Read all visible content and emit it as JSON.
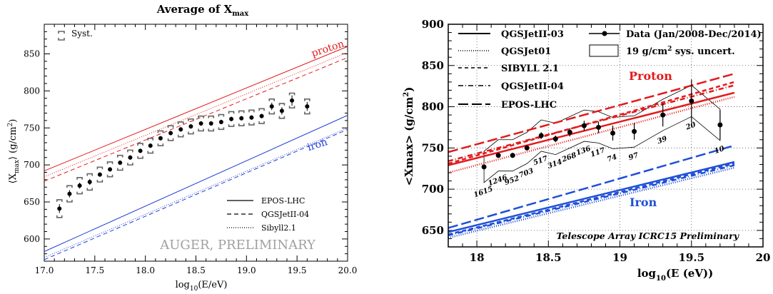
{
  "chart_data": [
    {
      "type": "scatter",
      "title_main": "Average of X",
      "title_sub": "max",
      "xlabel_main": "log",
      "xlabel_sub": "10",
      "xlabel_rest": "(E/eV)",
      "ylabel_a": "⟨X",
      "ylabel_sub": "max",
      "ylabel_b": "⟩  (g/cm",
      "ylabel_sup": "2",
      "ylabel_c": ")",
      "xlim": [
        17.0,
        20.0
      ],
      "ylim": [
        570,
        890
      ],
      "xticks": [
        17.0,
        17.5,
        18.0,
        18.5,
        19.0,
        19.5,
        20.0
      ],
      "xtick_labels": [
        "17.0",
        "17.5",
        "18.0",
        "18.5",
        "19.0",
        "19.5",
        "20.0"
      ],
      "yticks": [
        600,
        650,
        700,
        750,
        800,
        850
      ],
      "ytick_labels": [
        "600",
        "650",
        "700",
        "750",
        "800",
        "850"
      ],
      "syst_label": "Syst.",
      "watermark": "AUGER, PRELIMINARY",
      "annotations": [
        {
          "text": "proton",
          "color": "#e41a1c"
        },
        {
          "text": "iron",
          "color": "#1f3fd6"
        }
      ],
      "legend": [
        {
          "label": "EPOS-LHC",
          "dash": "solid"
        },
        {
          "label": "QGSJetII-04",
          "dash": "dashed"
        },
        {
          "label": "Sibyll2.1",
          "dash": "dotted"
        }
      ],
      "series": [
        {
          "name": "EPOS-LHC",
          "group": "proton",
          "color": "#e41a1c",
          "dash": "solid",
          "x": [
            17.0,
            20.0
          ],
          "y": [
            692,
            860
          ]
        },
        {
          "name": "QGSJetII-04",
          "group": "proton",
          "color": "#e41a1c",
          "dash": "dashed",
          "x": [
            17.0,
            20.0
          ],
          "y": [
            678,
            845
          ]
        },
        {
          "name": "Sibyll2.1",
          "group": "proton",
          "color": "#e41a1c",
          "dash": "dotted",
          "x": [
            17.0,
            20.0
          ],
          "y": [
            684,
            852
          ]
        },
        {
          "name": "EPOS-LHC",
          "group": "iron",
          "color": "#1f3fd6",
          "dash": "solid",
          "x": [
            17.0,
            20.0
          ],
          "y": [
            583,
            767
          ]
        },
        {
          "name": "QGSJetII-04",
          "group": "iron",
          "color": "#1f3fd6",
          "dash": "dashed",
          "x": [
            17.0,
            20.0
          ],
          "y": [
            572,
            748
          ]
        },
        {
          "name": "Sibyll2.1",
          "group": "iron",
          "color": "#1f3fd6",
          "dash": "dotted",
          "x": [
            17.0,
            20.0
          ],
          "y": [
            575,
            750
          ]
        }
      ],
      "points": {
        "x": [
          17.15,
          17.25,
          17.35,
          17.45,
          17.55,
          17.65,
          17.75,
          17.85,
          17.95,
          18.05,
          18.15,
          18.25,
          18.35,
          18.45,
          18.55,
          18.65,
          18.75,
          18.85,
          18.95,
          19.05,
          19.15,
          19.25,
          19.35,
          19.45,
          19.6
        ],
        "y": [
          641,
          661,
          672,
          677,
          687,
          694,
          703,
          710,
          719,
          726,
          736,
          743,
          748,
          752,
          756,
          756,
          758,
          762,
          763,
          764,
          766,
          779,
          773,
          787,
          779
        ],
        "err": [
          6,
          5,
          4,
          4,
          3,
          3,
          3,
          3,
          3,
          3,
          3,
          3,
          3,
          3,
          3,
          3,
          3,
          3,
          3,
          3,
          3,
          5,
          5,
          7,
          6
        ],
        "syst": [
          12,
          11,
          11,
          11,
          10,
          10,
          10,
          10,
          10,
          10,
          10,
          10,
          10,
          10,
          10,
          10,
          10,
          10,
          10,
          10,
          10,
          10,
          10,
          10,
          10
        ]
      }
    },
    {
      "type": "scatter",
      "xlabel_main": "log",
      "xlabel_sub": "10",
      "xlabel_rest": "(E (eV))",
      "ylabel_a": "<Xmax> (g/cm",
      "ylabel_sup": "2",
      "ylabel_c": ")",
      "xlim": [
        17.8,
        20.0
      ],
      "ylim": [
        630,
        900
      ],
      "xticks": [
        18.0,
        18.5,
        19.0,
        19.5,
        20.0
      ],
      "xtick_labels": [
        "18",
        "18.5",
        "19",
        "19.5",
        "20"
      ],
      "yticks": [
        650,
        700,
        750,
        800,
        850,
        900
      ],
      "ytick_labels": [
        "650",
        "700",
        "750",
        "800",
        "850",
        "900"
      ],
      "banner": "Telescope Array ICRC15 Preliminary",
      "annotations": [
        {
          "text": "Proton",
          "color": "#e31a1c"
        },
        {
          "text": "Iron",
          "color": "#1f4fd8"
        }
      ],
      "legend": [
        {
          "label": "QGSJetII-03",
          "dash": "solid"
        },
        {
          "label": "QGSJet01",
          "dash": "dotted"
        },
        {
          "label": "SIBYLL 2.1",
          "dash": "dashed"
        },
        {
          "label": "QGSJetII-04",
          "dash": "dashdot"
        },
        {
          "label": "EPOS-LHC",
          "dash": "longdash"
        },
        {
          "label": "Data (Jan/2008-Dec/2014)",
          "dash": "marker"
        },
        {
          "label": "19 g/cm",
          "sup": "2",
          "rest": " sys. uncert.",
          "dash": "box"
        }
      ],
      "series": [
        {
          "name": "QGSJetII-03",
          "group": "proton",
          "color": "#e31a1c",
          "dash": "solid",
          "x": [
            17.8,
            19.8
          ],
          "y": [
            729,
            817
          ]
        },
        {
          "name": "QGSJet01",
          "group": "proton",
          "color": "#e31a1c",
          "dash": "dotted",
          "x": [
            17.8,
            19.8
          ],
          "y": [
            720,
            812
          ]
        },
        {
          "name": "SIBYLL 2.1",
          "group": "proton",
          "color": "#e31a1c",
          "dash": "dashed",
          "x": [
            17.8,
            19.8
          ],
          "y": [
            731,
            830
          ]
        },
        {
          "name": "QGSJetII-04",
          "group": "proton",
          "color": "#e31a1c",
          "dash": "dashdot",
          "x": [
            17.8,
            19.8
          ],
          "y": [
            734,
            826
          ]
        },
        {
          "name": "EPOS-LHC",
          "group": "proton",
          "color": "#e31a1c",
          "dash": "longdash",
          "x": [
            17.8,
            19.8
          ],
          "y": [
            745,
            840
          ]
        },
        {
          "name": "QGSJetII-03",
          "group": "iron",
          "color": "#1f4fd8",
          "dash": "solid",
          "x": [
            17.8,
            19.8
          ],
          "y": [
            648,
            733
          ]
        },
        {
          "name": "QGSJet01",
          "group": "iron",
          "color": "#1f4fd8",
          "dash": "dotted",
          "x": [
            17.8,
            19.8
          ],
          "y": [
            641,
            726
          ]
        },
        {
          "name": "SIBYLL 2.1",
          "group": "iron",
          "color": "#1f4fd8",
          "dash": "dashed",
          "x": [
            17.8,
            19.8
          ],
          "y": [
            645,
            731
          ]
        },
        {
          "name": "QGSJetII-04",
          "group": "iron",
          "color": "#1f4fd8",
          "dash": "dashdot",
          "x": [
            17.8,
            19.8
          ],
          "y": [
            644,
            729
          ]
        },
        {
          "name": "EPOS-LHC",
          "group": "iron",
          "color": "#1f4fd8",
          "dash": "longdash",
          "x": [
            17.8,
            19.8
          ],
          "y": [
            653,
            753
          ]
        }
      ],
      "points": {
        "x": [
          18.05,
          18.15,
          18.25,
          18.35,
          18.45,
          18.55,
          18.65,
          18.75,
          18.85,
          18.95,
          19.1,
          19.3,
          19.5,
          19.7
        ],
        "y": [
          727,
          741,
          741,
          750,
          765,
          761,
          769,
          777,
          775,
          768,
          770,
          790,
          807,
          778
        ],
        "err": [
          3,
          3,
          3,
          3,
          4,
          4,
          5,
          6,
          7,
          9,
          10,
          14,
          26,
          18
        ],
        "counts": [
          "1615",
          "1246",
          "952",
          "703",
          "517",
          "314",
          "268",
          "136",
          "117",
          "74",
          "97",
          "39",
          "20",
          "10"
        ]
      },
      "band": {
        "x": [
          18.05,
          18.15,
          18.25,
          18.35,
          18.45,
          18.55,
          18.65,
          18.75,
          18.85,
          18.95,
          19.1,
          19.3,
          19.5,
          19.7
        ],
        "upper": [
          746,
          760,
          760,
          769,
          784,
          780,
          788,
          796,
          794,
          787,
          789,
          809,
          826,
          797
        ],
        "lower": [
          708,
          722,
          722,
          731,
          746,
          742,
          750,
          758,
          756,
          749,
          751,
          771,
          788,
          759
        ]
      }
    }
  ]
}
